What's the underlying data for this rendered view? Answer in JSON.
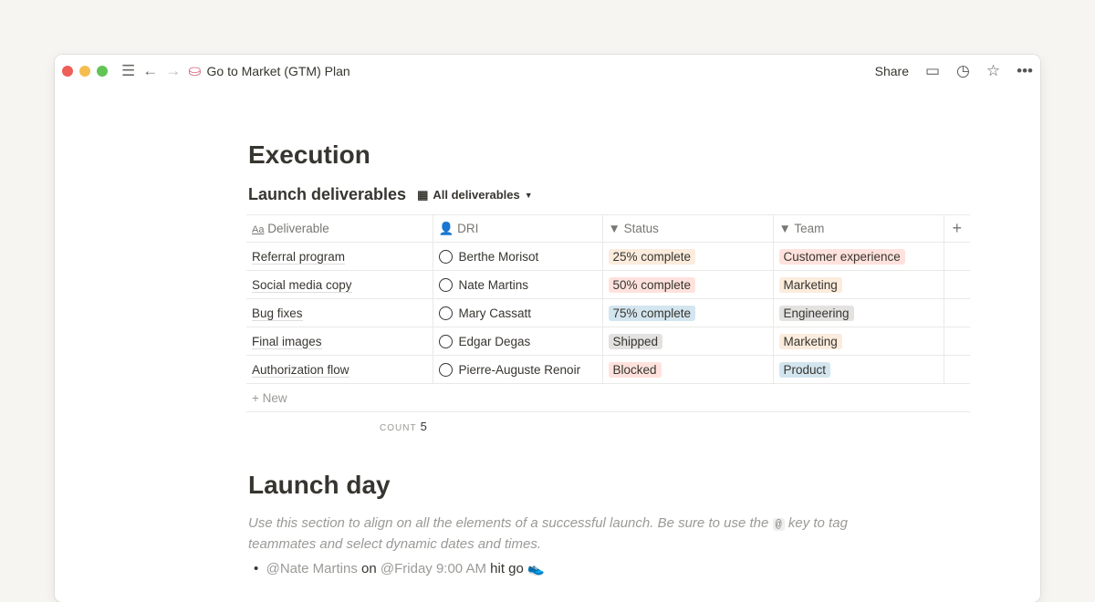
{
  "window": {
    "title": "Go to Market (GTM) Plan",
    "share": "Share",
    "page_icon": "cake-icon"
  },
  "heading": "Execution",
  "database": {
    "title": "Launch deliverables",
    "view": "All deliverables",
    "columns": [
      "Deliverable",
      "DRI",
      "Status",
      "Team"
    ],
    "rows": [
      {
        "deliverable": "Referral program",
        "dri": "Berthe Morisot",
        "status": "25% complete",
        "status_color": "#fbecdd",
        "team": "Customer experience",
        "team_color": "#ffe2dd"
      },
      {
        "deliverable": "Social media copy",
        "dri": "Nate Martins",
        "status": "50% complete",
        "status_color": "#ffe2dd",
        "team": "Marketing",
        "team_color": "#fbecdd"
      },
      {
        "deliverable": "Bug fixes",
        "dri": "Mary Cassatt",
        "status": "75% complete",
        "status_color": "#d3e5ef",
        "team": "Engineering",
        "team_color": "#e3e2e0"
      },
      {
        "deliverable": "Final images",
        "dri": "Edgar Degas",
        "status": "Shipped",
        "status_color": "#e3e2e0",
        "team": "Marketing",
        "team_color": "#fbecdd"
      },
      {
        "deliverable": "Authorization flow",
        "dri": "Pierre-Auguste Renoir",
        "status": "Blocked",
        "status_color": "#ffe2dd",
        "team": "Product",
        "team_color": "#d3e5ef"
      }
    ],
    "new_label": "New",
    "count_label": "COUNT",
    "count": "5"
  },
  "launch": {
    "heading": "Launch day",
    "desc_before": "Use this section to align on all the elements of a successful launch. Be sure to use the ",
    "key": "@",
    "desc_after": " key to tag teammates and select dynamic dates and times.",
    "bullet": {
      "mention": "@Nate Martins",
      "on": " on ",
      "date": "@Friday 9:00 AM",
      "rest": " hit go "
    }
  }
}
